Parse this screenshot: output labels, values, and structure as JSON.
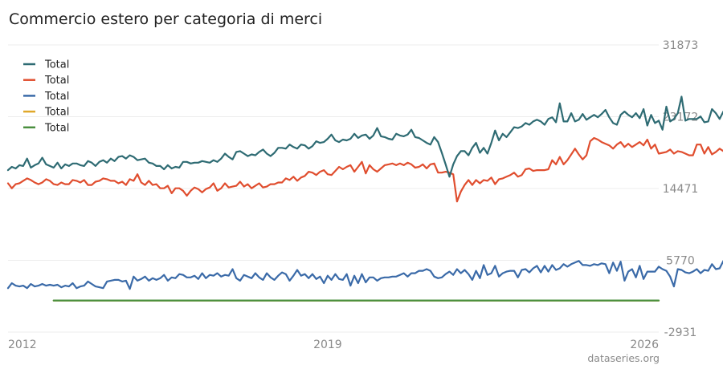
{
  "chart_data": {
    "type": "line",
    "title": "Commercio estero per categoria di merci",
    "source": "dataseries.org",
    "xlabel": "",
    "ylabel": "",
    "ylim": [
      -2931,
      31873
    ],
    "y_ticks": [
      "31873",
      "23172",
      "14471",
      "5770",
      "-2931"
    ],
    "x_ticks": [
      {
        "label": "2012",
        "year": 2012.0
      },
      {
        "label": "2019",
        "year": 2019.0
      },
      {
        "label": "2026",
        "year": 2026.0
      }
    ],
    "grid": true,
    "legend_position": "top-left",
    "series": [
      {
        "name": "Total",
        "color": "#2e6b73",
        "x_start": "2012-01",
        "frequency": "monthly",
        "values": [
          16700,
          17100,
          16900,
          17300,
          17200,
          18100,
          17000,
          17300,
          17500,
          18200,
          17400,
          17200,
          17000,
          17600,
          16900,
          17400,
          17200,
          17500,
          17500,
          17300,
          17200,
          17800,
          17600,
          17200,
          17700,
          17900,
          17600,
          18100,
          17800,
          18300,
          18400,
          18100,
          18500,
          18300,
          17900,
          18000,
          18100,
          17600,
          17500,
          17200,
          17200,
          16800,
          17300,
          16900,
          17100,
          17000,
          17700,
          17700,
          17500,
          17600,
          17600,
          17800,
          17700,
          17600,
          17900,
          17700,
          18100,
          18700,
          18300,
          18000,
          18900,
          19000,
          18700,
          18400,
          18600,
          18500,
          18900,
          19200,
          18700,
          18400,
          18800,
          19400,
          19400,
          19300,
          19800,
          19500,
          19300,
          19800,
          19700,
          19300,
          19600,
          20200,
          20000,
          20100,
          20500,
          21000,
          20300,
          20100,
          20400,
          20300,
          20500,
          21100,
          20600,
          20900,
          21000,
          20500,
          20900,
          21800,
          20800,
          20700,
          20500,
          20400,
          21100,
          20900,
          20800,
          21000,
          21600,
          20700,
          20600,
          20300,
          20000,
          19800,
          20700,
          20100,
          18800,
          17400,
          15900,
          17400,
          18400,
          19000,
          19000,
          18500,
          19400,
          20000,
          18800,
          19400,
          18700,
          20000,
          21500,
          20300,
          21100,
          20700,
          21300,
          21900,
          21800,
          22000,
          22400,
          22200,
          22600,
          22800,
          22600,
          22200,
          22900,
          23100,
          22500,
          24800,
          22600,
          22600,
          23600,
          22600,
          22800,
          23500,
          22800,
          23100,
          23400,
          23100,
          23500,
          24000,
          23100,
          22400,
          22200,
          23400,
          23800,
          23400,
          23100,
          23600,
          23000,
          24100,
          22100,
          23400,
          22400,
          22700,
          21600,
          24400,
          22600,
          22900,
          23600,
          25600,
          22700,
          22900,
          22900,
          22900,
          23200,
          22500,
          22600,
          24100,
          23600,
          22900,
          23800,
          24200,
          23700,
          24000,
          23400,
          23800,
          24100,
          22600,
          25200,
          23300,
          25300,
          24200,
          23300,
          28700,
          25600,
          22900,
          21800,
          23600,
          23000,
          22700,
          23100,
          23700,
          23200,
          23000,
          22500,
          23100,
          22800,
          23300,
          24700,
          22300,
          22700,
          22600,
          23100,
          23300,
          23000,
          25500,
          23700,
          24900
        ]
      },
      {
        "name": "Total",
        "color": "#e04e2f",
        "x_start": "2012-01",
        "frequency": "monthly",
        "values": [
          15100,
          14500,
          15000,
          15100,
          15400,
          15700,
          15500,
          15200,
          15000,
          15200,
          15600,
          15400,
          15000,
          14900,
          15200,
          15000,
          15000,
          15500,
          15400,
          15200,
          15500,
          14900,
          14900,
          15300,
          15400,
          15700,
          15600,
          15400,
          15400,
          15100,
          15300,
          14900,
          15600,
          15400,
          16200,
          15200,
          14900,
          15400,
          14900,
          15000,
          14500,
          14500,
          14800,
          13900,
          14500,
          14500,
          14200,
          13600,
          14200,
          14600,
          14400,
          14000,
          14400,
          14600,
          15100,
          14200,
          14500,
          15100,
          14600,
          14700,
          14800,
          15300,
          14700,
          15000,
          14500,
          14800,
          15100,
          14600,
          14700,
          15000,
          15000,
          15200,
          15200,
          15700,
          15500,
          15900,
          15400,
          15800,
          16000,
          16500,
          16400,
          16100,
          16500,
          16700,
          16200,
          16100,
          16600,
          17100,
          16800,
          17100,
          17300,
          16500,
          17100,
          17700,
          16300,
          17300,
          16800,
          16500,
          16900,
          17300,
          17400,
          17500,
          17300,
          17500,
          17300,
          17600,
          17400,
          17000,
          17100,
          17400,
          16900,
          17400,
          17500,
          16400,
          16400,
          16500,
          16400,
          16200,
          12900,
          14100,
          14900,
          15500,
          14900,
          15500,
          15100,
          15500,
          15400,
          15800,
          15000,
          15600,
          15700,
          15900,
          16100,
          16400,
          15900,
          16100,
          16800,
          16900,
          16600,
          16700,
          16700,
          16700,
          16800,
          17900,
          17400,
          18300,
          17400,
          17900,
          18600,
          19300,
          18600,
          18000,
          18500,
          20200,
          20600,
          20400,
          20100,
          19900,
          19700,
          19300,
          19800,
          20100,
          19500,
          19900,
          19500,
          19800,
          20100,
          19700,
          20400,
          19300,
          19800,
          18700,
          18800,
          18900,
          19200,
          18700,
          19000,
          18900,
          18700,
          18500,
          18500,
          19800,
          19800,
          18700,
          19500,
          18600,
          18900,
          19300,
          19000,
          18400,
          18500,
          20100,
          19200,
          18700,
          19700,
          19400,
          19000,
          18800,
          20000,
          19300,
          19000,
          18600,
          20200,
          18700,
          20900,
          23300,
          19300,
          18800,
          18700,
          18700,
          18300,
          18400,
          17600,
          19500,
          20200,
          20100,
          19800,
          19900,
          19900,
          19800,
          18400,
          19700,
          20100,
          19800,
          19200,
          19400,
          19900,
          20400
        ]
      },
      {
        "name": "Total",
        "color": "#3a6aa8",
        "x_start": "2012-01",
        "frequency": "monthly",
        "values": [
          2400,
          3000,
          2700,
          2600,
          2700,
          2400,
          2900,
          2600,
          2700,
          2900,
          2700,
          2800,
          2700,
          2800,
          2500,
          2700,
          2600,
          3000,
          2400,
          2600,
          2700,
          3200,
          2900,
          2600,
          2500,
          2400,
          3200,
          3300,
          3400,
          3400,
          3200,
          3300,
          2300,
          3800,
          3300,
          3500,
          3800,
          3300,
          3600,
          3400,
          3600,
          4000,
          3300,
          3700,
          3600,
          4100,
          4000,
          3700,
          3700,
          3900,
          3500,
          4200,
          3600,
          4000,
          3900,
          4200,
          3800,
          4000,
          3900,
          4700,
          3600,
          3300,
          4000,
          3800,
          3600,
          4200,
          3700,
          3400,
          4200,
          3700,
          3400,
          3900,
          4300,
          4100,
          3300,
          3900,
          4600,
          3900,
          4100,
          3600,
          4100,
          3500,
          3800,
          3000,
          3900,
          3400,
          4100,
          3500,
          3400,
          4100,
          2700,
          3900,
          3000,
          4100,
          3100,
          3700,
          3700,
          3300,
          3600,
          3700,
          3700,
          3800,
          3800,
          4000,
          4200,
          3800,
          4200,
          4200,
          4500,
          4500,
          4700,
          4500,
          3800,
          3600,
          3700,
          4100,
          4400,
          4000,
          4700,
          4200,
          4600,
          4100,
          3400,
          4500,
          3600,
          5200,
          4000,
          4200,
          5100,
          3800,
          4200,
          4400,
          4500,
          4500,
          3700,
          4600,
          4700,
          4300,
          4800,
          5100,
          4300,
          5100,
          4400,
          5200,
          4600,
          4800,
          5300,
          5000,
          5300,
          5500,
          5700,
          5200,
          5200,
          5100,
          5300,
          5200,
          5400,
          5300,
          4200,
          5500,
          4500,
          5600,
          3300,
          4400,
          4700,
          3700,
          5100,
          3500,
          4400,
          4400,
          4400,
          5000,
          4700,
          4500,
          3800,
          2600,
          4700,
          4600,
          4300,
          4200,
          4400,
          4700,
          4200,
          4600,
          4500,
          5300,
          4700,
          4800,
          5700,
          4600,
          4200,
          4400,
          6100,
          4500,
          3900,
          4600,
          4100,
          4300,
          4200,
          4300,
          4500,
          4600,
          5100,
          4700,
          5000,
          5300,
          5700,
          5300,
          5100,
          5600,
          5500,
          5500,
          6000,
          5600,
          5800,
          5500,
          5900,
          5500,
          4900,
          5400,
          5300,
          5700,
          3600,
          5000,
          5400,
          4800,
          5300,
          3700,
          4700,
          4500,
          4200,
          3900,
          4300,
          4300,
          4400,
          4800,
          4400,
          3800,
          4400,
          5700,
          4500
        ]
      },
      {
        "name": "Total",
        "color": "#e0a82a",
        "x_start": "2013-01",
        "frequency": "monthly",
        "constant_value": 890
      },
      {
        "name": "Total",
        "color": "#4a8f3f",
        "x_start": "2013-01",
        "frequency": "monthly",
        "constant_value": 900
      }
    ]
  }
}
